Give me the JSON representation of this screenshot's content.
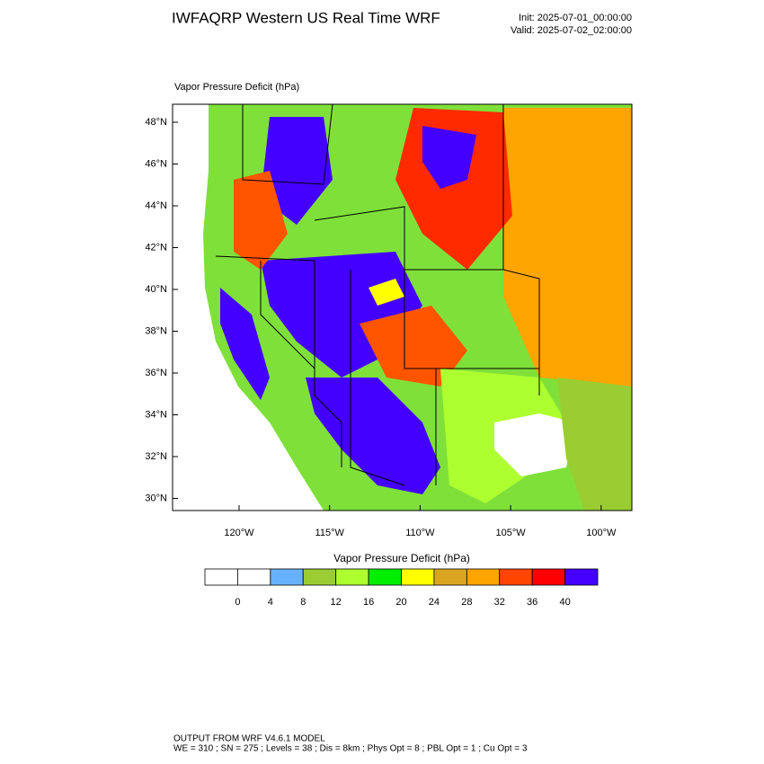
{
  "header": {
    "title": "IWFAQRP Western US Real Time WRF",
    "init": "Init: 2025-07-01_00:00:00",
    "valid": "Valid: 2025-07-02_02:00:00"
  },
  "map": {
    "label": "Vapor Pressure Deficit   (hPa)",
    "lat_labels": [
      "48°N",
      "46°N",
      "44°N",
      "42°N",
      "40°N",
      "38°N",
      "36°N",
      "34°N",
      "32°N",
      "30°N"
    ],
    "lon_labels": [
      "120°W",
      "115°W",
      "110°W",
      "105°W",
      "100°W"
    ]
  },
  "colorbar": {
    "title": "Vapor Pressure Deficit  (hPa)",
    "colors": [
      "#ffffff",
      "#ffffff",
      "#66b2ff",
      "#9acd32",
      "#adff2f",
      "#00ee00",
      "#ffff00",
      "#daa520",
      "#ffa500",
      "#ff4500",
      "#ff0000",
      "#4400ff"
    ],
    "labels": [
      "0",
      "4",
      "8",
      "12",
      "16",
      "20",
      "24",
      "28",
      "32",
      "36",
      "40"
    ]
  },
  "footer": {
    "lines": [
      "OUTPUT FROM WRF V4.6.1 MODEL",
      "WE = 310 ; SN = 275 ; Levels = 38 ; Dis = 8km ; Phys Opt = 8 ; PBL Opt = 1 ; Cu Opt = 3"
    ]
  }
}
